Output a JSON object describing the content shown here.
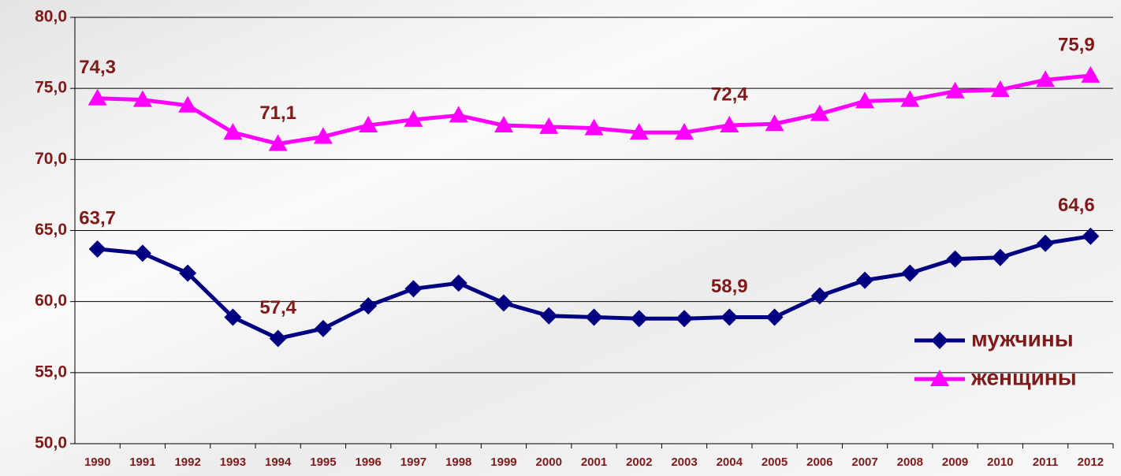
{
  "chart_data": {
    "type": "line",
    "categories": [
      "1990",
      "1991",
      "1992",
      "1993",
      "1994",
      "1995",
      "1996",
      "1997",
      "1998",
      "1999",
      "2000",
      "2001",
      "2002",
      "2003",
      "2004",
      "2005",
      "2006",
      "2007",
      "2008",
      "2009",
      "2010",
      "2011",
      "2012"
    ],
    "series": [
      {
        "name": "мужчины",
        "color": "#000080",
        "marker": "diamond",
        "values": [
          63.7,
          63.4,
          62.0,
          58.9,
          57.4,
          58.1,
          59.7,
          60.9,
          61.3,
          59.9,
          59.0,
          58.9,
          58.8,
          58.8,
          58.9,
          58.9,
          60.4,
          61.5,
          62.0,
          63.0,
          63.1,
          64.1,
          64.6
        ],
        "value_labels": [
          "63,7",
          null,
          null,
          null,
          "57,4",
          null,
          null,
          null,
          null,
          null,
          null,
          null,
          null,
          null,
          "58,9",
          null,
          null,
          null,
          null,
          null,
          null,
          null,
          "64,6"
        ]
      },
      {
        "name": "женщины",
        "color": "#ff00ff",
        "marker": "triangle",
        "values": [
          74.3,
          74.2,
          73.8,
          71.9,
          71.1,
          71.6,
          72.4,
          72.8,
          73.1,
          72.4,
          72.3,
          72.2,
          71.9,
          71.9,
          72.4,
          72.5,
          73.2,
          74.1,
          74.2,
          74.8,
          74.9,
          75.6,
          75.9
        ],
        "value_labels": [
          "74,3",
          null,
          null,
          null,
          "71,1",
          null,
          null,
          null,
          null,
          null,
          null,
          null,
          null,
          null,
          "72,4",
          null,
          null,
          null,
          null,
          null,
          null,
          null,
          "75,9"
        ]
      }
    ],
    "ylim": [
      50,
      80
    ],
    "yticks": [
      {
        "value": 50,
        "label": "50,0"
      },
      {
        "value": 55,
        "label": "55,0"
      },
      {
        "value": 60,
        "label": "60,0"
      },
      {
        "value": 65,
        "label": "65,0"
      },
      {
        "value": 70,
        "label": "70,0"
      },
      {
        "value": 75,
        "label": "75,0"
      },
      {
        "value": 80,
        "label": "80,0"
      }
    ],
    "grid": true,
    "legend": "right"
  }
}
